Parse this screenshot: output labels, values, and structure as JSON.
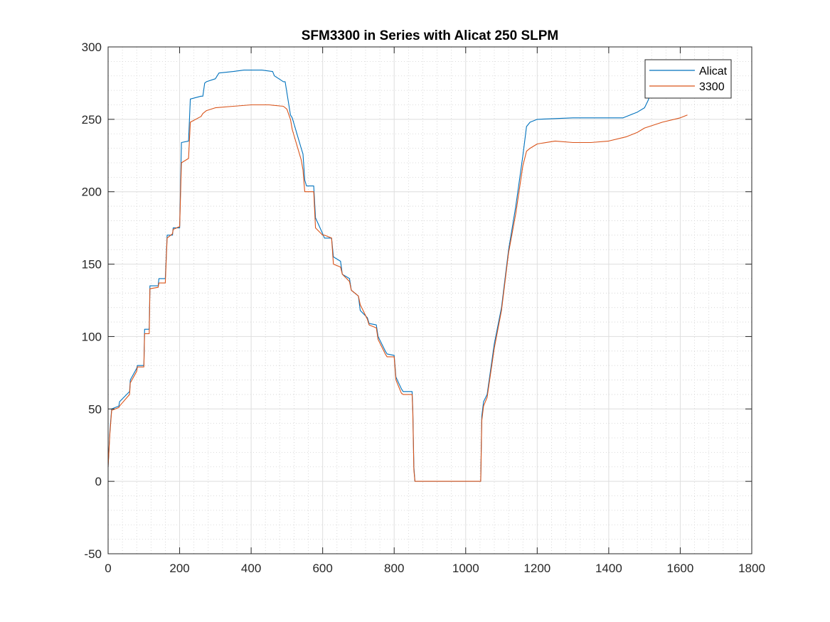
{
  "chart_data": {
    "type": "line",
    "title": "SFM3300 in Series with Alicat 250 SLPM",
    "xlabel": "",
    "ylabel": "",
    "xlim": [
      0,
      1800
    ],
    "ylim": [
      -50,
      300
    ],
    "xticks": [
      0,
      200,
      400,
      600,
      800,
      1000,
      1200,
      1400,
      1600,
      1800
    ],
    "yticks": [
      -50,
      0,
      50,
      100,
      150,
      200,
      250,
      300
    ],
    "grid": "major and minor",
    "legend_position": "top-right",
    "series": [
      {
        "name": "Alicat",
        "color": "#0072BD",
        "x": [
          0,
          5,
          10,
          30,
          32,
          60,
          62,
          80,
          82,
          100,
          102,
          115,
          117,
          140,
          142,
          160,
          165,
          180,
          182,
          200,
          205,
          225,
          230,
          260,
          265,
          270,
          275,
          300,
          310,
          350,
          380,
          400,
          430,
          460,
          465,
          490,
          495,
          510,
          515,
          540,
          545,
          550,
          555,
          575,
          580,
          600,
          605,
          625,
          630,
          650,
          655,
          675,
          680,
          700,
          705,
          725,
          730,
          750,
          755,
          775,
          780,
          800,
          805,
          820,
          825,
          850,
          852,
          855,
          858,
          1000,
          1040,
          1042,
          1045,
          1050,
          1060,
          1080,
          1100,
          1120,
          1140,
          1160,
          1170,
          1180,
          1200,
          1250,
          1300,
          1350,
          1400,
          1440,
          1460,
          1480,
          1500,
          1510,
          1520
        ],
        "values": [
          10,
          35,
          50,
          52,
          55,
          62,
          70,
          78,
          80,
          80,
          105,
          105,
          135,
          135,
          140,
          140,
          170,
          170,
          175,
          175,
          234,
          235,
          264,
          266,
          266,
          275,
          276,
          278,
          282,
          283,
          284,
          284,
          284,
          283,
          280,
          276,
          276,
          253,
          251,
          230,
          226,
          208,
          204,
          204,
          182,
          171,
          168,
          168,
          155,
          152,
          143,
          140,
          132,
          128,
          118,
          113,
          109,
          108,
          100,
          90,
          88,
          87,
          72,
          64,
          62,
          62,
          50,
          10,
          0,
          0,
          0,
          0,
          45,
          55,
          60,
          95,
          120,
          160,
          190,
          225,
          245,
          248,
          250,
          250.5,
          251,
          251,
          251,
          251,
          253,
          255,
          258,
          263,
          270
        ]
      },
      {
        "name": "3300",
        "color": "#D95319",
        "x": [
          0,
          5,
          10,
          30,
          32,
          60,
          62,
          80,
          82,
          100,
          102,
          115,
          117,
          140,
          142,
          160,
          165,
          180,
          182,
          200,
          205,
          225,
          230,
          260,
          265,
          275,
          300,
          350,
          400,
          450,
          490,
          500,
          510,
          515,
          540,
          545,
          550,
          555,
          575,
          580,
          600,
          605,
          625,
          630,
          650,
          655,
          675,
          680,
          700,
          705,
          725,
          730,
          750,
          755,
          775,
          780,
          800,
          805,
          820,
          825,
          850,
          852,
          855,
          858,
          1000,
          1040,
          1042,
          1045,
          1050,
          1060,
          1080,
          1100,
          1120,
          1140,
          1160,
          1170,
          1180,
          1200,
          1250,
          1300,
          1350,
          1400,
          1450,
          1480,
          1500,
          1550,
          1600,
          1620
        ],
        "values": [
          10,
          33,
          49,
          51,
          52,
          60,
          68,
          76,
          79,
          79,
          102,
          102,
          133,
          134,
          137,
          137,
          168,
          171,
          174,
          176,
          220,
          223,
          248,
          252,
          254,
          256,
          258,
          259,
          260,
          260,
          259,
          257,
          250,
          243,
          222,
          215,
          200,
          200,
          200,
          175,
          170,
          170,
          168,
          150,
          148,
          143,
          138,
          132,
          128,
          122,
          112,
          108,
          106,
          98,
          88,
          86,
          86,
          70,
          61,
          60,
          60,
          48,
          8,
          0,
          0,
          0,
          0,
          42,
          52,
          58,
          92,
          118,
          158,
          185,
          218,
          228,
          230,
          233,
          235,
          234,
          234,
          235,
          238,
          241,
          244,
          248,
          251,
          253
        ]
      }
    ]
  }
}
